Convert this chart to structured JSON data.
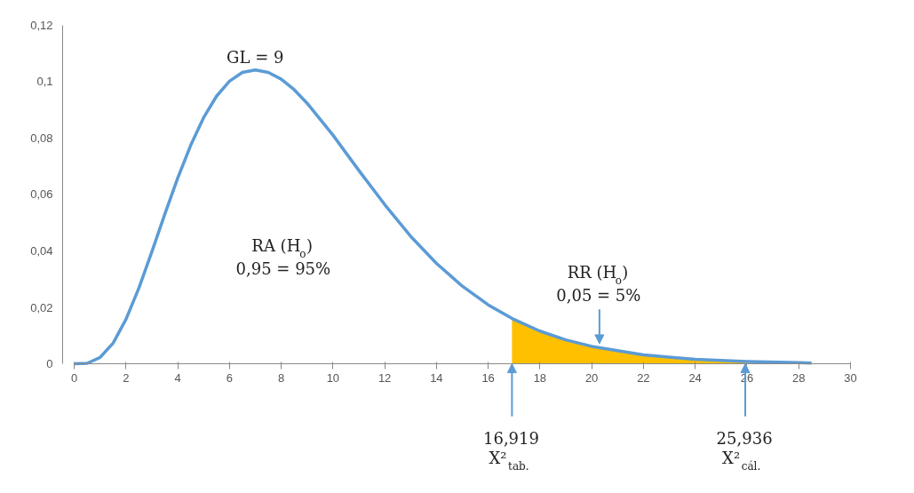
{
  "chart_data": {
    "type": "line",
    "grid": false,
    "marker": "none",
    "line_style": "solid",
    "xlim": [
      0,
      30
    ],
    "xticks": [
      0,
      2,
      4,
      6,
      8,
      10,
      12,
      14,
      16,
      18,
      20,
      22,
      24,
      26,
      28,
      30
    ],
    "ylim": [
      0,
      0.12
    ],
    "yticks": [
      0,
      {
        "value": 0.02,
        "label": "0,02"
      },
      {
        "value": 0.04,
        "label": "0,04"
      },
      {
        "value": 0.06,
        "label": "0,06"
      },
      {
        "value": 0.08,
        "label": "0,08"
      },
      {
        "value": 0.1,
        "label": "0,1"
      },
      {
        "value": 0.12,
        "label": "0,12"
      }
    ],
    "series": [
      {
        "type": "area",
        "color": "#ffc000",
        "x": [
          16.919,
          18,
          19,
          20,
          21,
          22,
          23,
          24,
          25,
          25.936
        ],
        "values": [
          0.016,
          0.0116,
          0.0085,
          0.0062,
          0.0045,
          0.0032,
          0.0023,
          0.0016,
          0.0011,
          0.0008
        ]
      },
      {
        "color": "#5b9bd5",
        "x": [
          0,
          0.5,
          1,
          1.5,
          2,
          2.5,
          3,
          3.5,
          4,
          4.5,
          5,
          5.5,
          6,
          6.5,
          7,
          7.5,
          8,
          8.5,
          9,
          10,
          11,
          12,
          13,
          14,
          15,
          16,
          17,
          18,
          19,
          20,
          22,
          24,
          26,
          28,
          28.5
        ],
        "values": [
          0,
          0.0002,
          0.0023,
          0.0073,
          0.0158,
          0.0269,
          0.0397,
          0.053,
          0.0658,
          0.0774,
          0.0872,
          0.0948,
          0.1001,
          0.1032,
          0.1041,
          0.1032,
          0.1008,
          0.0971,
          0.0923,
          0.081,
          0.0685,
          0.0564,
          0.0452,
          0.0356,
          0.0275,
          0.0209,
          0.0157,
          0.0116,
          0.0085,
          0.0062,
          0.0032,
          0.0016,
          0.0008,
          0.0004,
          0.0003
        ]
      }
    ],
    "annotations": [
      {
        "text": "GL = 9",
        "x": 7,
        "y": 0.104
      },
      "RA (H$_{o}$)\n0,95 = 95%",
      {
        "text": "RR (H$_{o}$)\n0,05 = 5%",
        "x": 20.3,
        "y": 0.0065
      },
      {
        "text": "16,919\nX²$_{tab.}$",
        "x": 16.919,
        "y": 0
      },
      {
        "text": "25,936\nX²$_{cál.}$",
        "x": 25.936,
        "y": 0
      }
    ]
  }
}
